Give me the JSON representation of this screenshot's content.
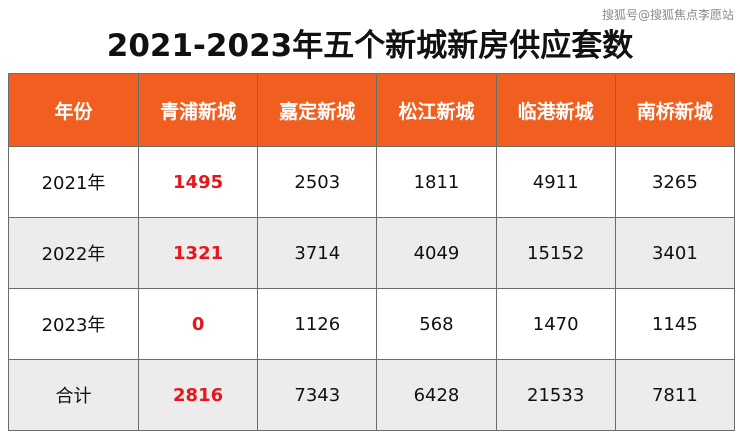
{
  "watermark": "搜狐号@搜狐焦点李愿站",
  "title": "2021-2023年五个新城新房供应套数",
  "colors": {
    "header_bg": "#f05f1f",
    "highlight": "#e5161c",
    "stripe": "#ececec"
  },
  "chart_data": {
    "type": "table",
    "title": "2021-2023年五个新城新房供应套数",
    "columns": [
      "年份",
      "青浦新城",
      "嘉定新城",
      "松江新城",
      "临港新城",
      "南桥新城"
    ],
    "rows": [
      [
        "2021年",
        "1495",
        "2503",
        "1811",
        "4911",
        "3265"
      ],
      [
        "2022年",
        "1321",
        "3714",
        "4049",
        "15152",
        "3401"
      ],
      [
        "2023年",
        "0",
        "1126",
        "568",
        "1470",
        "1145"
      ],
      [
        "合计",
        "2816",
        "7343",
        "6428",
        "21533",
        "7811"
      ]
    ],
    "highlighted_column": "青浦新城"
  }
}
